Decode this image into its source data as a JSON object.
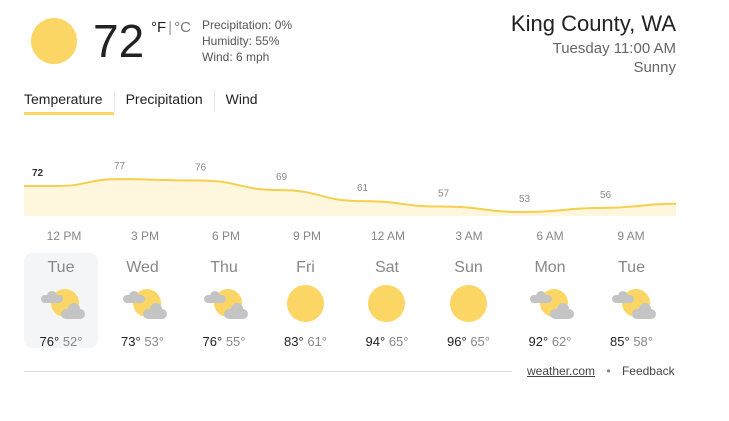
{
  "current": {
    "temp": "72",
    "unit_f": "°F",
    "unit_sep": "|",
    "unit_c": "°C",
    "icon": "sun-icon",
    "precipitation": "Precipitation: 0%",
    "humidity": "Humidity: 55%",
    "wind": "Wind: 6 mph"
  },
  "location": {
    "name": "King County, WA",
    "time": "Tuesday 11:00 AM",
    "condition": "Sunny"
  },
  "tabs": [
    {
      "label": "Temperature",
      "active": true
    },
    {
      "label": "Precipitation"
    },
    {
      "label": "Wind"
    }
  ],
  "colors": {
    "accent": "#fcd664",
    "line": "#f5cf4d",
    "fill": "#fef7dd"
  },
  "chart_data": {
    "type": "area",
    "categories": [
      "12 PM",
      "3 PM",
      "6 PM",
      "9 PM",
      "12 AM",
      "3 AM",
      "6 AM",
      "9 AM"
    ],
    "values": [
      72,
      77,
      76,
      69,
      61,
      57,
      53,
      56
    ],
    "labels": [
      "72",
      "77",
      "76",
      "69",
      "61",
      "57",
      "53",
      "56"
    ]
  },
  "days": [
    {
      "name": "Tue",
      "icon": "partly-cloudy-icon",
      "high": "76°",
      "low": "52°",
      "selected": true
    },
    {
      "name": "Wed",
      "icon": "partly-cloudy-icon",
      "high": "73°",
      "low": "53°"
    },
    {
      "name": "Thu",
      "icon": "partly-cloudy-icon",
      "high": "76°",
      "low": "55°"
    },
    {
      "name": "Fri",
      "icon": "sun-icon",
      "high": "83°",
      "low": "61°"
    },
    {
      "name": "Sat",
      "icon": "sun-icon",
      "high": "94°",
      "low": "65°"
    },
    {
      "name": "Sun",
      "icon": "sun-icon",
      "high": "96°",
      "low": "65°"
    },
    {
      "name": "Mon",
      "icon": "partly-cloudy-icon",
      "high": "92°",
      "low": "62°"
    },
    {
      "name": "Tue",
      "icon": "partly-cloudy-icon",
      "high": "85°",
      "low": "58°"
    }
  ],
  "footer": {
    "source": "weather.com",
    "dot": "•",
    "feedback": "Feedback"
  }
}
